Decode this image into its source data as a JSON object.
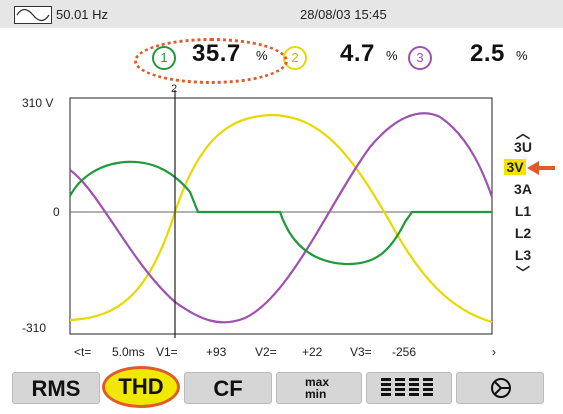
{
  "status": {
    "frequency": "50.01 Hz",
    "datetime": "28/08/03 15:45",
    "wave_icon": "waveform-icon"
  },
  "thd": {
    "unit": "%",
    "phases": [
      {
        "number": "1",
        "value": "35.7",
        "color": "#1f9a3a"
      },
      {
        "number": "2",
        "value": "4.7",
        "color": "#e8d800"
      },
      {
        "number": "3",
        "value": "2.5",
        "color": "#a050b0"
      }
    ]
  },
  "cursor_label": "2",
  "axis": {
    "y_top": "310 V",
    "y_zero": "0",
    "y_bottom": "-310"
  },
  "readout": {
    "time_label": "<t=",
    "time_value": "5.0ms",
    "v1_label": "V1=",
    "v1_value": "+93",
    "v2_label": "V2=",
    "v2_value": "+22",
    "v3_label": "V3=",
    "v3_value": "-256",
    "scroll_glyph": "›"
  },
  "side_menu": {
    "items": [
      "3U",
      "3V",
      "3A",
      "L1",
      "L2",
      "L3"
    ],
    "selected": "3V",
    "up_glyph": "︿",
    "down_glyph": "﹀"
  },
  "tabs": {
    "rms": "RMS",
    "thd": "THD",
    "cf": "CF",
    "max": "max",
    "min": "min",
    "selected": "THD"
  },
  "colors": {
    "phase1": "#1f9a3a",
    "phase2": "#e8d800",
    "phase3": "#a050b0",
    "highlight": "#e05a2a",
    "selected_bg": "#f0e800"
  }
}
